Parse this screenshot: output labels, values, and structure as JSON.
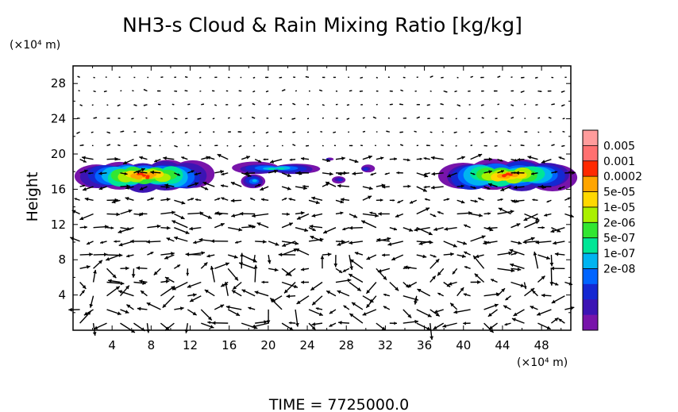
{
  "chart_data": {
    "type": "heatmap",
    "title": "NH3-s Cloud & Rain Mixing Ratio [kg/kg]",
    "ylabel": "Height",
    "xunit": "(×10⁴ m)",
    "yunit": "(×10⁴ m)",
    "footer": "TIME = 7725000.0",
    "xlim": [
      0,
      51
    ],
    "ylim": [
      0,
      30
    ],
    "xticks": [
      "4",
      "8",
      "12",
      "16",
      "20",
      "24",
      "28",
      "32",
      "36",
      "40",
      "44",
      "48"
    ],
    "xtick_values": [
      4,
      8,
      12,
      16,
      20,
      24,
      28,
      32,
      36,
      40,
      44,
      48
    ],
    "yticks": [
      "4",
      "8",
      "12",
      "16",
      "20",
      "24",
      "28"
    ],
    "ytick_values": [
      4,
      8,
      12,
      16,
      20,
      24,
      28
    ],
    "colorbar": {
      "levels": [
        "0.005",
        "0.001",
        "0.0002",
        "5e-05",
        "1e-05",
        "2e-06",
        "5e-07",
        "1e-07",
        "2e-08"
      ],
      "colors": [
        "#ff9c9c",
        "#ff7070",
        "#ff2a00",
        "#ffa500",
        "#ffd800",
        "#aaf000",
        "#32e632",
        "#00e696",
        "#00b4f0",
        "#0064ff",
        "#1428d2",
        "#3c14b4",
        "#7814aa"
      ]
    },
    "cloud_blobs": [
      {
        "x": [
          0.3,
          14.3
        ],
        "y": [
          15.8,
          19.2
        ]
      },
      {
        "x": [
          17.2,
          19.7
        ],
        "y": [
          16.2,
          17.8
        ]
      },
      {
        "x": [
          17.8,
          23.8
        ],
        "y": [
          17.7,
          19.0
        ]
      },
      {
        "x": [
          25.8,
          26.6
        ],
        "y": [
          19.2,
          19.6
        ]
      },
      {
        "x": [
          26.6,
          28.0
        ],
        "y": [
          16.6,
          17.5
        ]
      },
      {
        "x": [
          29.4,
          30.8
        ],
        "y": [
          17.8,
          18.8
        ]
      },
      {
        "x": [
          38.2,
          50.9
        ],
        "y": [
          15.8,
          19.3
        ]
      }
    ]
  }
}
